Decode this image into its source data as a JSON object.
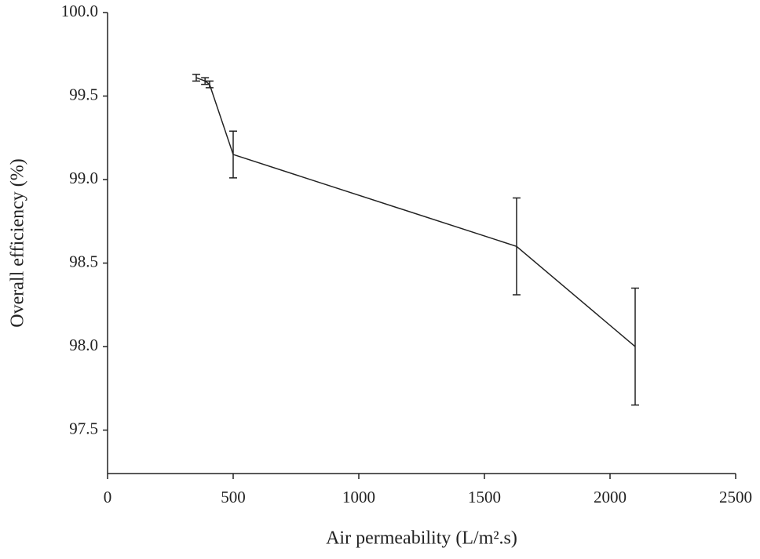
{
  "chart_data": {
    "type": "line",
    "x_label": "Air permeability (L/m².s)",
    "y_label": "Overall efficiency (%)",
    "x": [
      353,
      388,
      406,
      500,
      1628,
      2100
    ],
    "series": [
      {
        "color": "#222222",
        "values": [
          99.61,
          99.59,
          99.57,
          99.15,
          98.6,
          98.0
        ],
        "errors": [
          0.02,
          0.02,
          0.02,
          0.14,
          0.29,
          0.35
        ]
      }
    ],
    "xlim": [
      0,
      2500
    ],
    "xticks": [
      0,
      500,
      1000,
      1500,
      2000,
      2500
    ],
    "ylim": [
      97.24,
      100
    ],
    "yticks": [
      97.5,
      {
        "value": 98,
        "label": "98.0"
      },
      98.5,
      {
        "value": 99,
        "label": "99.0"
      },
      99.5,
      {
        "value": 100,
        "label": "100.0"
      }
    ]
  }
}
